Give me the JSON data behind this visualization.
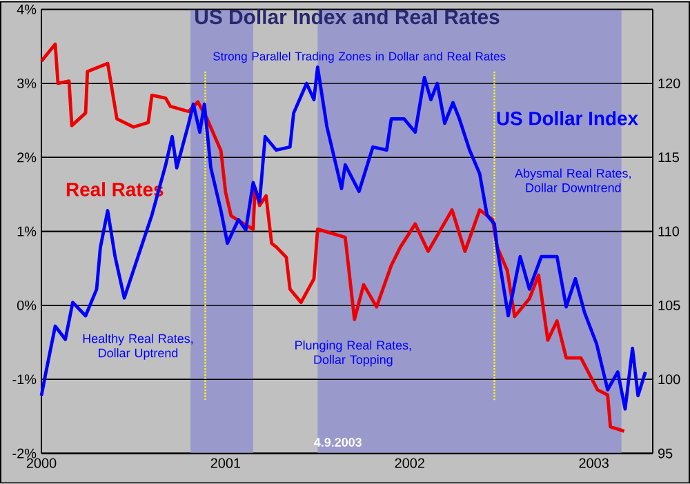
{
  "chart_data": {
    "type": "line",
    "title": "US Dollar Index and Real Rates",
    "annotations": [
      "Strong Parallel Trading Zones in Dollar and Real Rates",
      "Healthy Real Rates, Dollar Uptrend",
      "Plunging Real Rates, Dollar Topping",
      "Abysmal Real Rates, Dollar Downtrend",
      "4.9.2003"
    ],
    "series": [
      {
        "name": "Real Rates",
        "color": "#ee0000",
        "x": [
          2000.0,
          2000.075,
          2000.09,
          2000.15,
          2000.165,
          2000.24,
          2000.25,
          2000.36,
          2000.41,
          2000.5,
          2000.58,
          2000.6,
          2000.675,
          2000.7,
          2000.8,
          2000.85,
          2000.9,
          2000.975,
          2001.0,
          2001.03,
          2001.1,
          2001.15,
          2001.16,
          2001.185,
          2001.22,
          2001.25,
          2001.275,
          2001.33,
          2001.35,
          2001.41,
          2001.48,
          2001.5,
          2001.65,
          2001.7,
          2001.75,
          2001.82,
          2001.9,
          2001.95,
          2002.03,
          2002.1,
          2002.23,
          2002.3,
          2002.38,
          2002.45,
          2002.475,
          2002.53,
          2002.57,
          2002.65,
          2002.7,
          2002.75,
          2002.8,
          2002.85,
          2002.93,
          2002.98,
          2003.02,
          2003.075,
          2003.09,
          2003.165
        ],
        "values": [
          3.3,
          3.53,
          3.0,
          3.03,
          2.43,
          2.6,
          3.16,
          3.27,
          2.52,
          2.41,
          2.47,
          2.84,
          2.8,
          2.69,
          2.62,
          2.75,
          2.52,
          2.09,
          1.53,
          1.21,
          1.1,
          1.03,
          1.59,
          1.35,
          1.48,
          0.84,
          0.79,
          0.65,
          0.22,
          0.04,
          0.36,
          1.03,
          0.92,
          -0.19,
          0.28,
          -0.02,
          0.54,
          0.79,
          1.1,
          0.73,
          1.29,
          0.73,
          1.29,
          1.16,
          0.79,
          0.47,
          -0.15,
          0.09,
          0.41,
          -0.47,
          -0.21,
          -0.71,
          -0.71,
          -0.95,
          -1.14,
          -1.21,
          -1.64,
          -1.7
        ]
      },
      {
        "name": "US Dollar Index",
        "color": "#0000ff",
        "axis": "y2",
        "x": [
          2000.0,
          2000.02,
          2000.075,
          2000.13,
          2000.17,
          2000.24,
          2000.3,
          2000.32,
          2000.36,
          2000.4,
          2000.45,
          2000.525,
          2000.6,
          2000.675,
          2000.71,
          2000.735,
          2000.8,
          2000.825,
          2000.86,
          2000.885,
          2000.92,
          2000.975,
          2001.01,
          2001.07,
          2001.11,
          2001.15,
          2001.185,
          2001.215,
          2001.275,
          2001.35,
          2001.37,
          2001.44,
          2001.48,
          2001.5,
          2001.55,
          2001.63,
          2001.65,
          2001.725,
          2001.8,
          2001.875,
          2001.9,
          2001.97,
          2002.03,
          2002.08,
          2002.115,
          2002.15,
          2002.19,
          2002.235,
          2002.27,
          2002.325,
          2002.38,
          2002.42,
          2002.46,
          2002.475,
          2002.535,
          2002.6,
          2002.65,
          2002.715,
          2002.8,
          2002.85,
          2002.9,
          2002.95,
          2003.015,
          2003.075,
          2003.13,
          2003.17,
          2003.21,
          2003.24,
          2003.28
        ],
        "values": [
          98.9,
          100.2,
          103.6,
          102.7,
          105.2,
          104.3,
          106.1,
          108.9,
          111.4,
          108.3,
          105.5,
          108.3,
          111.1,
          114.5,
          116.4,
          114.3,
          117.3,
          118.6,
          116.7,
          118.6,
          114.3,
          111.4,
          109.2,
          110.8,
          110.1,
          113.3,
          112,
          116.4,
          115.5,
          115.7,
          118,
          120,
          118.9,
          121.1,
          117.1,
          112.9,
          114.5,
          112.7,
          115.7,
          115.5,
          117.6,
          117.6,
          116.7,
          120.4,
          118.9,
          120,
          117.3,
          118.7,
          117.6,
          115.5,
          113.9,
          111.1,
          110.5,
          108.9,
          104.3,
          108.3,
          106.1,
          108.3,
          108.3,
          104.9,
          106.8,
          104.5,
          102.4,
          99.3,
          100.5,
          98,
          102.1,
          98.9,
          100.5
        ]
      }
    ],
    "xlim": [
      2000,
      2003.32
    ],
    "xticks": [
      2000,
      2001,
      2002,
      2003
    ],
    "ylim": [
      -2,
      4
    ],
    "yticks": [
      {
        "value": -2,
        "label": "-2%"
      },
      {
        "value": -1,
        "label": "-1%"
      },
      {
        "value": 0,
        "label": "0%"
      },
      {
        "value": 1,
        "label": "1%"
      },
      {
        "value": 2,
        "label": "2%"
      },
      {
        "value": 3,
        "label": "3%"
      },
      {
        "value": 4,
        "label": "4%"
      }
    ],
    "y2lim": [
      95,
      125
    ],
    "y2ticks": [
      95,
      100,
      105,
      110,
      115,
      120
    ],
    "bands": [
      {
        "axis": "x",
        "from": 2000.81,
        "to": 2001.15,
        "color": "#9999cc"
      },
      {
        "axis": "x",
        "from": 2001.5,
        "to": 2003.15,
        "color": "#9999cc"
      }
    ],
    "ref_lines": [
      {
        "axis": "x",
        "value": 2000.89,
        "color": "#ffff00",
        "line_style": "dotted"
      },
      {
        "axis": "x",
        "value": 2002.46,
        "color": "#ffff00",
        "line_style": "dotted"
      }
    ],
    "grid": "y",
    "marker": "none",
    "line_style": "solid"
  }
}
